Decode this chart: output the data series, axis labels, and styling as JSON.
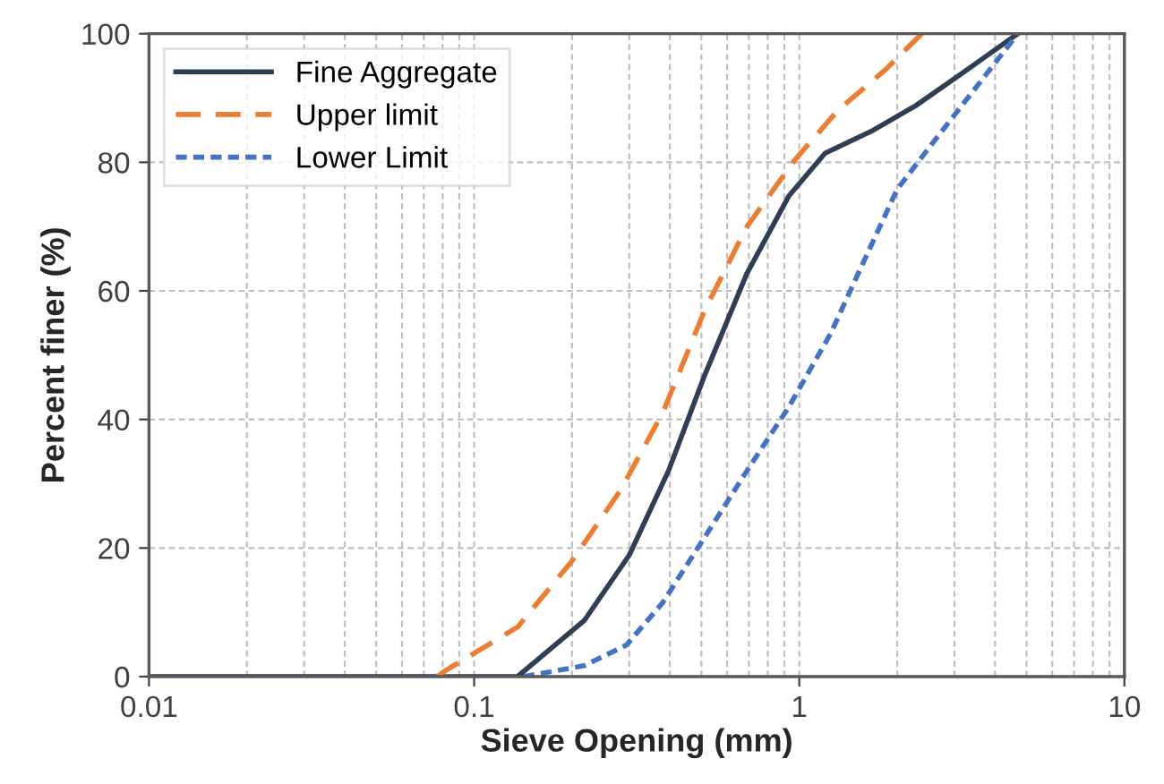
{
  "chart_data": {
    "type": "line",
    "xlabel": "Sieve Opening (mm)",
    "ylabel": "Percent finer (%)",
    "log": "x",
    "xlim": [
      0.01,
      10
    ],
    "xticks": [
      0.01,
      0.1,
      1,
      10
    ],
    "ylim": [
      0,
      100
    ],
    "yticks": [
      0,
      20,
      40,
      60,
      80,
      100
    ],
    "grid": true,
    "legend": "top left",
    "marker": "none",
    "series": [
      {
        "name": "Fine Aggregate",
        "color": "#2f3e55",
        "line_style": "solid",
        "x": [
          0.01,
          0.136,
          0.218,
          0.3,
          0.396,
          0.512,
          0.69,
          0.93,
          1.2,
          1.69,
          2.28,
          3.2,
          4.7
        ],
        "values": [
          0,
          0,
          8.7,
          18.9,
          32,
          46.9,
          62.7,
          74.8,
          81.4,
          85,
          88.8,
          94,
          100
        ]
      },
      {
        "name": "Upper limit",
        "color": "#ed7d31",
        "line_style": "dashed",
        "x": [
          0.077,
          0.082,
          0.136,
          0.2,
          0.282,
          0.38,
          0.512,
          0.69,
          0.97,
          1.31,
          1.84,
          2.38
        ],
        "values": [
          0,
          1,
          7.7,
          18,
          29,
          41,
          57,
          70,
          80.4,
          88,
          94.4,
          100
        ]
      },
      {
        "name": "Lower Limit",
        "color": "#4472c4",
        "line_style": "dotted",
        "x": [
          0.142,
          0.218,
          0.294,
          0.38,
          0.512,
          0.69,
          0.93,
          1.25,
          1.55,
          2.0,
          2.59,
          3.49,
          4.7
        ],
        "values": [
          0,
          1.7,
          4.9,
          11.5,
          21.7,
          32,
          42,
          53.4,
          63.7,
          75.8,
          83.2,
          91.6,
          100
        ]
      }
    ]
  }
}
